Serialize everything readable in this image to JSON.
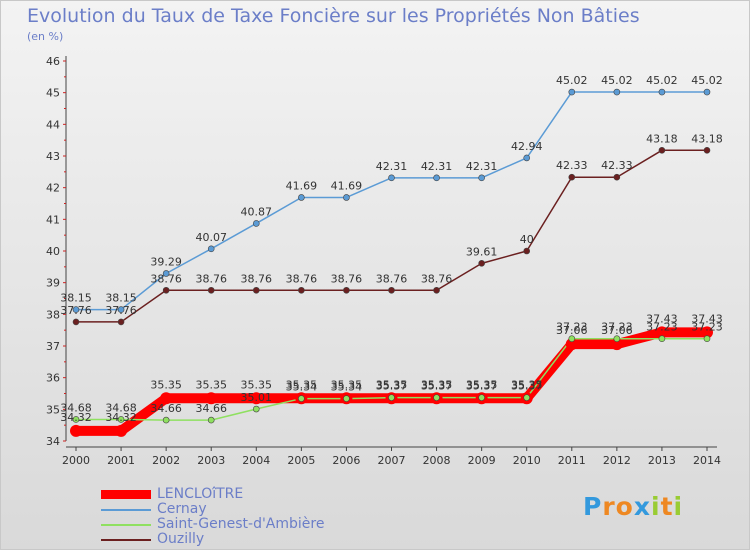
{
  "chart_data": {
    "type": "line",
    "title": "Evolution du Taux de Taxe Foncière sur les Propriétés Non Bâties",
    "ylabel": "(en %)",
    "xlabel": "",
    "ylim": [
      34,
      46
    ],
    "yticks": [
      "34",
      "35",
      "36",
      "37",
      "38",
      "39",
      "40",
      "41",
      "42",
      "43",
      "44",
      "45",
      "46"
    ],
    "x": [
      "2000",
      "2001",
      "2002",
      "2003",
      "2004",
      "2005",
      "2006",
      "2007",
      "2008",
      "2009",
      "2010",
      "2011",
      "2012",
      "2013",
      "2014"
    ],
    "series": [
      {
        "name": "LENCLOîTRE",
        "color": "#ff0000",
        "values": [
          34.32,
          34.32,
          35.35,
          35.35,
          35.35,
          35.35,
          35.35,
          35.35,
          35.35,
          35.35,
          35.35,
          37.06,
          37.06,
          37.43,
          37.43
        ],
        "labels": [
          "34.32",
          "34.32",
          "35.35",
          "35.35",
          "35.35",
          "35.35",
          "35.35",
          "35.35",
          "35.35",
          "35.35",
          "35.35",
          "37.06",
          "37.06",
          "37.43",
          "37.43"
        ]
      },
      {
        "name": "Cernay",
        "color": "#5b9bd5",
        "values": [
          38.15,
          38.15,
          39.29,
          40.07,
          40.87,
          41.69,
          41.69,
          42.31,
          42.31,
          42.31,
          42.94,
          45.02,
          45.02,
          45.02,
          45.02
        ],
        "labels": [
          "38.15",
          "38.15",
          "39.29",
          "40.07",
          "40.87",
          "41.69",
          "41.69",
          "42.31",
          "42.31",
          "42.31",
          "42.94",
          "45.02",
          "45.02",
          "45.02",
          "45.02"
        ]
      },
      {
        "name": "Saint-Genest-d'Ambière",
        "color": "#8fe060",
        "values": [
          34.68,
          34.68,
          34.66,
          34.66,
          35.01,
          35.34,
          35.34,
          35.37,
          35.37,
          35.37,
          35.37,
          37.23,
          37.23,
          37.23,
          37.23
        ],
        "labels": [
          "34.68",
          "34.68",
          "34.66",
          "34.66",
          "35.01",
          "35.34",
          "35.34",
          "35.37",
          "35.37",
          "35.37",
          "35.37",
          "37.23",
          "37.23",
          "37.23",
          "37.23"
        ]
      },
      {
        "name": "Ouzilly",
        "color": "#6b2020",
        "values": [
          37.76,
          37.76,
          38.76,
          38.76,
          38.76,
          38.76,
          38.76,
          38.76,
          38.76,
          39.61,
          40,
          42.33,
          42.33,
          43.18,
          43.18
        ],
        "labels": [
          "37.76",
          "37.76",
          "38.76",
          "38.76",
          "38.76",
          "38.76",
          "38.76",
          "38.76",
          "38.76",
          "39.61",
          "40",
          "42.33",
          "42.33",
          "43.18",
          "43.18"
        ]
      }
    ],
    "legend_position": "bottom-left"
  },
  "brand": {
    "letters": [
      "P",
      "r",
      "o",
      "x",
      "i",
      "t",
      "i"
    ],
    "colors": [
      "#3399dd",
      "#ee8822",
      "#ee8822",
      "#3399dd",
      "#99cc33",
      "#ee8822",
      "#99cc33"
    ]
  }
}
